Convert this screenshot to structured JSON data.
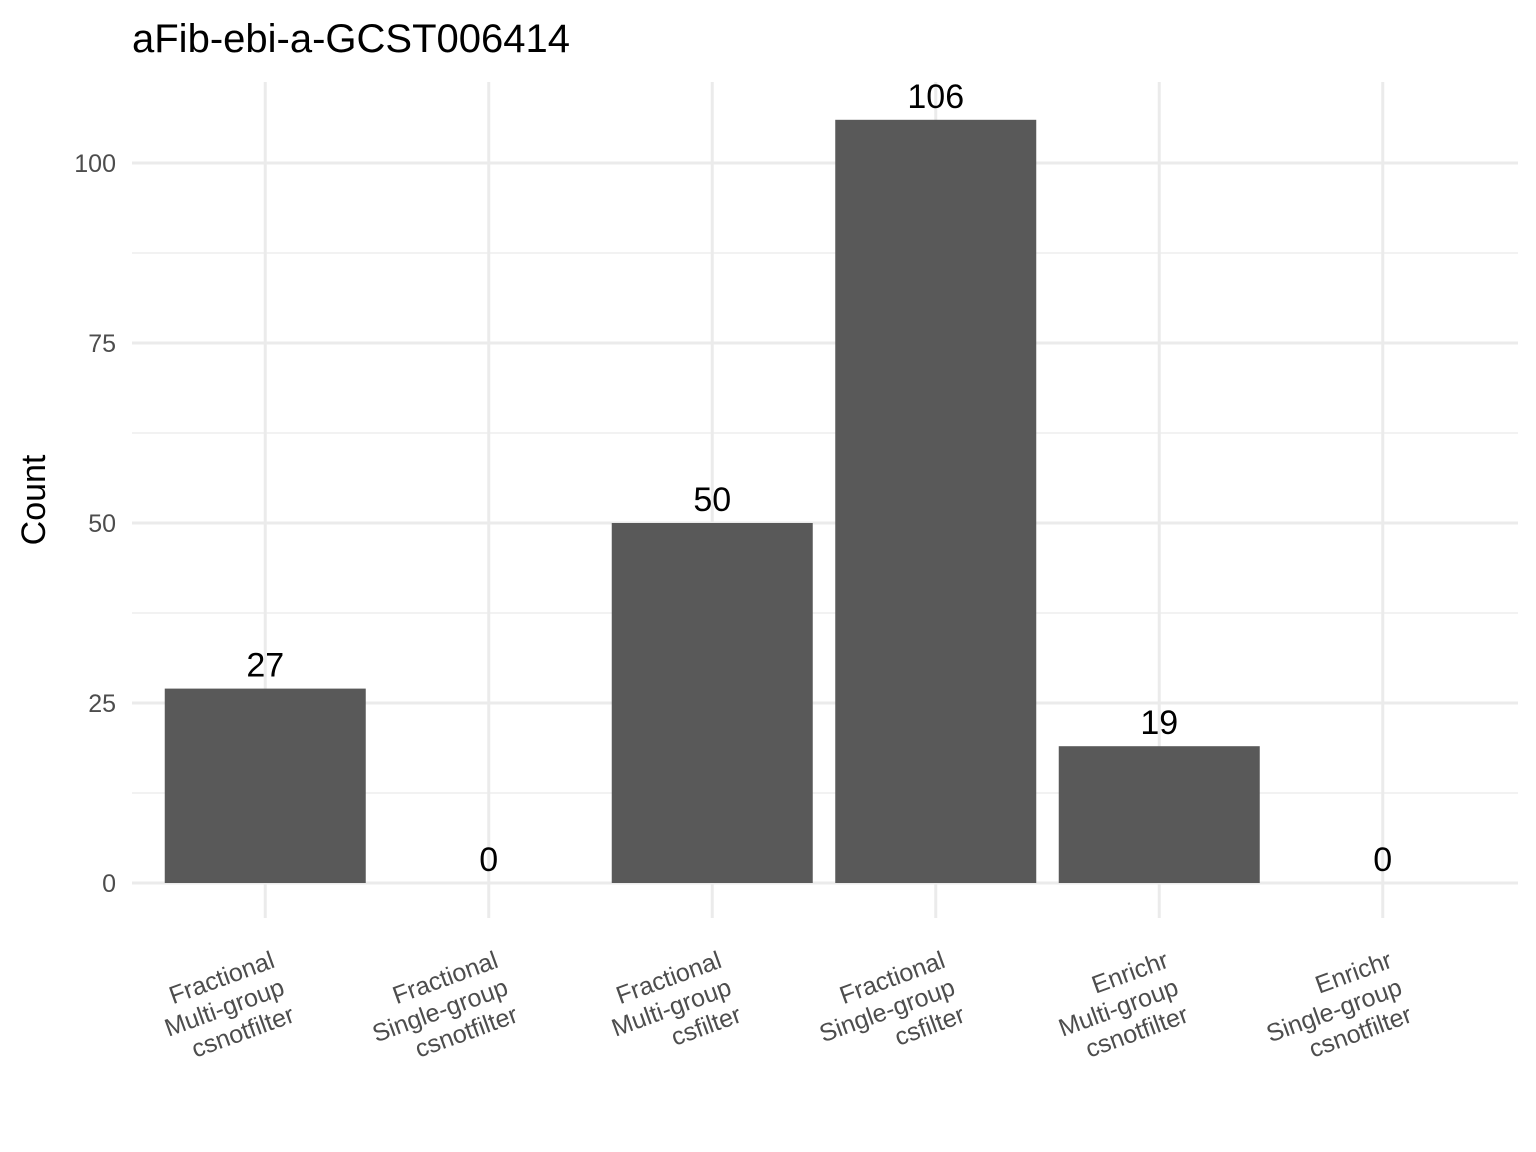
{
  "chart_data": {
    "type": "bar",
    "title": "aFib-ebi-a-GCST006414",
    "xlabel": "",
    "ylabel": "Count",
    "categories": [
      [
        "Fractional",
        "Multi-group",
        "csnotfilter"
      ],
      [
        "Fractional",
        "Single-group",
        "csnotfilter"
      ],
      [
        "Fractional",
        "Multi-group",
        "csfilter"
      ],
      [
        "Fractional",
        "Single-group",
        "csfilter"
      ],
      [
        "Enrichr",
        "Multi-group",
        "csnotfilter"
      ],
      [
        "Enrichr",
        "Single-group",
        "csnotfilter"
      ]
    ],
    "values": [
      27,
      0,
      50,
      106,
      19,
      0
    ],
    "data_labels": [
      "27",
      "0",
      "50",
      "106",
      "19",
      "0"
    ],
    "yticks": [
      0,
      25,
      50,
      75,
      100
    ],
    "ylim": [
      0,
      106
    ],
    "grid": true,
    "legend": "none",
    "colors": {
      "bar": "#595959",
      "grid_major": "#ebebeb",
      "grid_minor": "#f2f2f2",
      "tick_text": "#4d4d4d",
      "text": "#000000"
    }
  }
}
